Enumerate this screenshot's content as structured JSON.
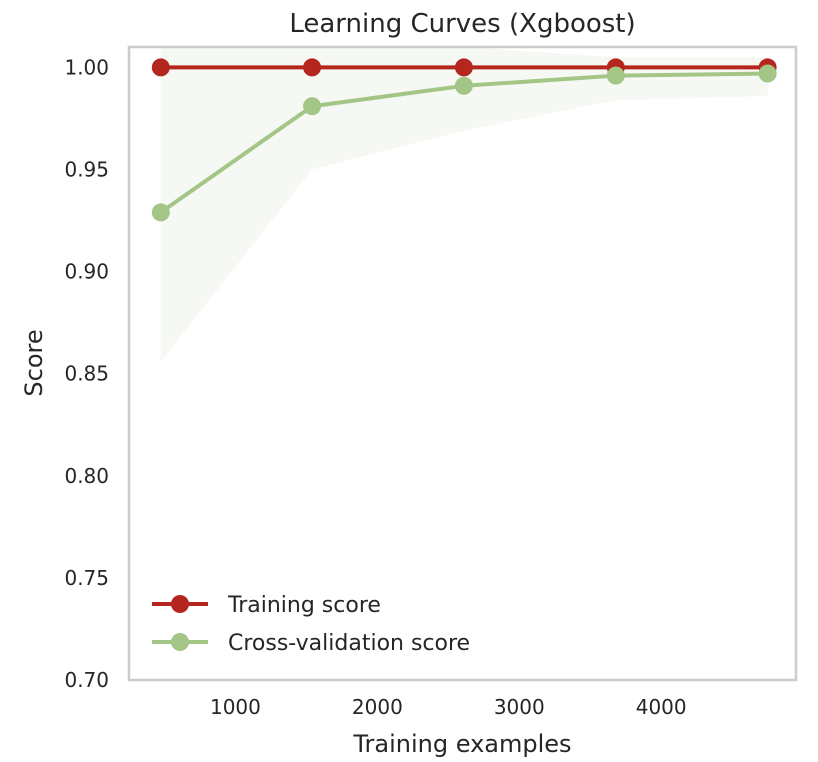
{
  "chart_data": {
    "type": "line",
    "title": "Learning Curves (Xgboost)",
    "xlabel": "Training examples",
    "ylabel": "Score",
    "xlim": [
      250,
      4950
    ],
    "ylim": [
      0.7,
      1.01
    ],
    "x_ticks": [
      1000,
      2000,
      3000,
      4000
    ],
    "x_tick_labels": [
      "1000",
      "2000",
      "3000",
      "4000"
    ],
    "y_ticks": [
      0.7,
      0.75,
      0.8,
      0.85,
      0.9,
      0.95,
      1.0
    ],
    "y_tick_labels": [
      "0.70",
      "0.75",
      "0.80",
      "0.85",
      "0.90",
      "0.95",
      "1.00"
    ],
    "grid": false,
    "legend_position": "lower-left",
    "x": [
      474,
      1540,
      2610,
      3680,
      4750
    ],
    "series": [
      {
        "name": "Training score",
        "color": "#b5271e",
        "values": [
          1.0,
          1.0,
          1.0,
          1.0,
          1.0
        ],
        "band_lower": [
          1.0,
          1.0,
          1.0,
          1.0,
          1.0
        ],
        "band_upper": [
          1.0,
          1.0,
          1.0,
          1.0,
          1.0
        ],
        "band_color": "#b5271e"
      },
      {
        "name": "Cross-validation score",
        "color": "#a3c585",
        "values": [
          0.929,
          0.981,
          0.991,
          0.996,
          0.997
        ],
        "band_lower": [
          0.856,
          0.95,
          0.969,
          0.984,
          0.986
        ],
        "band_upper": [
          1.01,
          1.01,
          1.01,
          1.005,
          1.005
        ],
        "band_color": "#a3c585"
      }
    ]
  }
}
